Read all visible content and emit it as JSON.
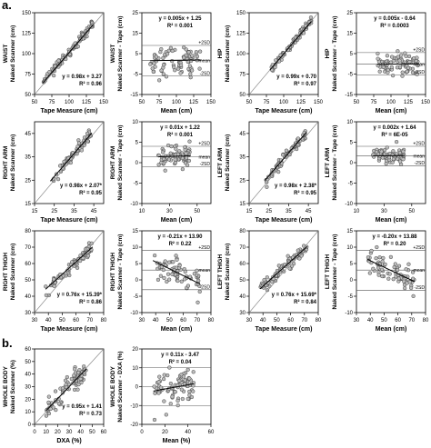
{
  "section_labels": [
    "a.",
    "b."
  ],
  "chart_data": [
    {
      "id": "waist-reg",
      "type": "scatter",
      "region_label": "WAIST",
      "xlabel": "Tape Measure (cm)",
      "ylabel": "Naked Scanner (cm)",
      "xlim": [
        50,
        150
      ],
      "ylim": [
        50,
        150
      ],
      "xticks": [
        50,
        75,
        100,
        125,
        150
      ],
      "yticks": [
        50,
        75,
        100,
        125,
        150
      ],
      "equation": "y = 0.98x + 3.27",
      "r2": "R² = 0.96",
      "identity_line": true,
      "fit": {
        "slope": 0.98,
        "intercept": 3.27
      },
      "points": {
        "x_range": [
          62,
          135
        ],
        "n": 80,
        "noise": 3
      }
    },
    {
      "id": "waist-ba",
      "type": "scatter",
      "region_label": "WAIST",
      "xlabel": "Mean (cm)",
      "ylabel": "Naked Scanner - Tape (cm)",
      "xlim": [
        50,
        150
      ],
      "ylim": [
        -15,
        25
      ],
      "xticks": [
        50,
        75,
        100,
        125,
        150
      ],
      "yticks": [
        -15,
        -5,
        5,
        15,
        25
      ],
      "equation": "y = 0.005x + 1.25",
      "r2": "R² = 0.001",
      "fit": {
        "slope": 0.005,
        "intercept": 1.25
      },
      "mean": 1.6,
      "upper": 9.0,
      "lower": -6.0,
      "ref_labels": [
        "+2SD",
        "mean",
        "-2SD"
      ],
      "points": {
        "x_range": [
          62,
          135
        ],
        "n": 80,
        "noise": 3.8
      }
    },
    {
      "id": "hip-reg",
      "type": "scatter",
      "region_label": "HIP",
      "xlabel": "Tape Measure (cm)",
      "ylabel": "Naked Scanner (cm)",
      "xlim": [
        50,
        150
      ],
      "ylim": [
        50,
        150
      ],
      "xticks": [
        50,
        75,
        100,
        125,
        150
      ],
      "yticks": [
        50,
        75,
        100,
        125,
        150
      ],
      "equation": "y = 0.99x + 0.70",
      "r2": "R² = 0.97",
      "identity_line": true,
      "fit": {
        "slope": 0.99,
        "intercept": 0.7
      },
      "points": {
        "x_range": [
          80,
          140
        ],
        "n": 80,
        "noise": 2.5
      }
    },
    {
      "id": "hip-ba",
      "type": "scatter",
      "region_label": "HIP",
      "xlabel": "Mean (cm)",
      "ylabel": "Naked Scanner - Tape (cm)",
      "xlim": [
        50,
        150
      ],
      "ylim": [
        -15,
        25
      ],
      "xticks": [
        50,
        75,
        100,
        125,
        150
      ],
      "yticks": [
        -15,
        -5,
        5,
        15,
        25
      ],
      "equation": "y = 0.005x - 0.64",
      "r2": "R² = 0.0003",
      "fit": {
        "slope": 0.005,
        "intercept": -0.64
      },
      "mean": -0.2,
      "upper": 5.5,
      "lower": -5.5,
      "ref_labels": [
        "+2SD",
        "mean",
        "-2SD"
      ],
      "points": {
        "x_range": [
          80,
          140
        ],
        "n": 80,
        "noise": 2.8
      }
    },
    {
      "id": "rarm-reg",
      "type": "scatter",
      "region_label": "RIGHT ARM",
      "xlabel": "Tape Measure (cm)",
      "ylabel": "Naked Scanner (cm)",
      "xlim": [
        15,
        50
      ],
      "ylim": [
        15,
        50
      ],
      "xticks": [
        15,
        25,
        35,
        45
      ],
      "yticks": [
        15,
        25,
        35,
        45
      ],
      "equation": "y = 0.98x + 2.07*",
      "r2": "R² = 0.95",
      "identity_line": true,
      "fit": {
        "slope": 0.98,
        "intercept": 2.07
      },
      "points": {
        "x_range": [
          23,
          44
        ],
        "n": 70,
        "noise": 1.2
      }
    },
    {
      "id": "rarm-ba",
      "type": "scatter",
      "region_label": "RIGHT ARM",
      "xlabel": "Mean (cm)",
      "ylabel": "Naked Scanner - Tape (cm)",
      "xlim": [
        10,
        60
      ],
      "ylim": [
        -10,
        10
      ],
      "xticks": [
        10,
        30,
        50
      ],
      "yticks": [
        -10,
        -5,
        0,
        5,
        10
      ],
      "equation": "y = 0.01x + 1.22",
      "r2": "R² = 0.001",
      "fit": {
        "slope": 0.01,
        "intercept": 1.22
      },
      "mean": 1.5,
      "upper": 4.0,
      "lower": -1.0,
      "ref_labels": [
        "+2SD",
        "mean",
        "-2SD"
      ],
      "points": {
        "x_range": [
          22,
          45
        ],
        "n": 70,
        "noise": 1.2
      }
    },
    {
      "id": "larm-reg",
      "type": "scatter",
      "region_label": "LEFT ARM",
      "xlabel": "Tape Measure (cm)",
      "ylabel": "Naked Scanner (cm)",
      "xlim": [
        15,
        50
      ],
      "ylim": [
        15,
        50
      ],
      "xticks": [
        15,
        25,
        35,
        45
      ],
      "yticks": [
        15,
        25,
        35,
        45
      ],
      "equation": "y = 0.98x + 2.38*",
      "r2": "R² = 0.95",
      "identity_line": true,
      "fit": {
        "slope": 0.98,
        "intercept": 2.38
      },
      "points": {
        "x_range": [
          23,
          44
        ],
        "n": 70,
        "noise": 1.2
      }
    },
    {
      "id": "larm-ba",
      "type": "scatter",
      "region_label": "LEFT ARM",
      "xlabel": "Mean (cm)",
      "ylabel": "Naked Scanner - Tape (cm)",
      "xlim": [
        10,
        60
      ],
      "ylim": [
        -10,
        10
      ],
      "xticks": [
        10,
        30,
        50
      ],
      "yticks": [
        -10,
        -5,
        0,
        5,
        10
      ],
      "equation": "y = 0.002x + 1.64",
      "r2": "R² = 6E-05",
      "fit": {
        "slope": 0.002,
        "intercept": 1.64
      },
      "mean": 1.7,
      "upper": 4.0,
      "lower": -0.8,
      "ref_labels": [
        "+2SD",
        "mean",
        "-2SD"
      ],
      "points": {
        "x_range": [
          22,
          45
        ],
        "n": 70,
        "noise": 1.0
      }
    },
    {
      "id": "rthigh-reg",
      "type": "scatter",
      "region_label": "RIGHT THIGH",
      "xlabel": "Tape Measure (cm)",
      "ylabel": "Naked Scanner (cm)",
      "xlim": [
        30,
        80
      ],
      "ylim": [
        30,
        80
      ],
      "xticks": [
        30,
        40,
        50,
        60,
        70,
        80
      ],
      "yticks": [
        30,
        40,
        50,
        60,
        70,
        80
      ],
      "equation": "y = 0.76x + 15.39*",
      "r2": "R² = 0.86",
      "identity_line": true,
      "fit": {
        "slope": 0.76,
        "intercept": 15.39
      },
      "points": {
        "x_range": [
          38,
          72
        ],
        "n": 80,
        "noise": 1.8
      }
    },
    {
      "id": "rthigh-ba",
      "type": "scatter",
      "region_label": "RIGHT THIGH",
      "xlabel": "Mean (cm)",
      "ylabel": "Naked Scanner - Tape (cm)",
      "xlim": [
        30,
        80
      ],
      "ylim": [
        -10,
        15
      ],
      "xticks": [
        30,
        40,
        50,
        60,
        70,
        80
      ],
      "yticks": [
        -10,
        -5,
        0,
        5,
        10,
        15
      ],
      "equation": "y = -0.21x + 13.90",
      "r2": "R² = 0.22",
      "fit": {
        "slope": -0.21,
        "intercept": 13.9
      },
      "mean": 3.0,
      "upper": 9.0,
      "lower": -3.0,
      "ref_labels": [
        "+2SD",
        "mean",
        "-2SD"
      ],
      "points": {
        "x_range": [
          38,
          72
        ],
        "n": 80,
        "noise": 2.2
      }
    },
    {
      "id": "lthigh-reg",
      "type": "scatter",
      "region_label": "LEFT THIGH",
      "xlabel": "Tape Measure (cm)",
      "ylabel": "Naked Scanner (cm)",
      "xlim": [
        30,
        80
      ],
      "ylim": [
        30,
        80
      ],
      "xticks": [
        30,
        40,
        50,
        60,
        70,
        80
      ],
      "yticks": [
        30,
        40,
        50,
        60,
        70,
        80
      ],
      "equation": "y = 0.76x + 15.69*",
      "r2": "R² = 0.84",
      "identity_line": true,
      "fit": {
        "slope": 0.76,
        "intercept": 15.69
      },
      "points": {
        "x_range": [
          38,
          72
        ],
        "n": 80,
        "noise": 1.9
      }
    },
    {
      "id": "lthigh-ba",
      "type": "scatter",
      "region_label": "LEFT THIGH",
      "xlabel": "Mean (cm)",
      "ylabel": "Naked Scanner - Tape (cm)",
      "xlim": [
        30,
        80
      ],
      "ylim": [
        -10,
        15
      ],
      "xticks": [
        30,
        40,
        50,
        60,
        70,
        80
      ],
      "yticks": [
        -10,
        -5,
        0,
        5,
        10,
        15
      ],
      "equation": "y = -0.20x + 13.88",
      "r2": "R² = 0.20",
      "fit": {
        "slope": -0.2,
        "intercept": 13.88
      },
      "mean": 3.0,
      "upper": 9.0,
      "lower": -3.2,
      "ref_labels": [
        "+2SD",
        "mean",
        "-2SD"
      ],
      "points": {
        "x_range": [
          38,
          72
        ],
        "n": 80,
        "noise": 2.3
      }
    },
    {
      "id": "wb-reg",
      "type": "scatter",
      "region_label": "WHOLE BODY",
      "xlabel": "DXA (%)",
      "ylabel": "Naked Scanner (%)",
      "xlim": [
        0,
        60
      ],
      "ylim": [
        0,
        60
      ],
      "xticks": [
        0,
        10,
        20,
        30,
        40,
        50,
        60
      ],
      "yticks": [
        0,
        10,
        20,
        30,
        40,
        50,
        60
      ],
      "equation": "y = 0.95x + 1.41",
      "r2": "R² = 0.73",
      "identity_line": true,
      "fit": {
        "slope": 0.95,
        "intercept": 1.41
      },
      "points": {
        "x_range": [
          10,
          45
        ],
        "n": 80,
        "noise": 4.5
      }
    },
    {
      "id": "wb-ba",
      "type": "scatter",
      "region_label": "WHOLE BODY",
      "xlabel": "Mean (%)",
      "ylabel": "Naked Scanner - DXA (%)",
      "xlim": [
        0,
        60
      ],
      "ylim": [
        -20,
        20
      ],
      "xticks": [
        0,
        20,
        40,
        60
      ],
      "yticks": [
        -20,
        -10,
        0,
        10,
        20
      ],
      "equation": "y = 0.11x - 3.47",
      "r2": "R² = 0.04",
      "fit": {
        "slope": 0.11,
        "intercept": -3.47
      },
      "mean": 0.0,
      "upper": 10.0,
      "lower": -10.0,
      "points": {
        "x_range": [
          10,
          45
        ],
        "n": 80,
        "noise": 5.0
      }
    }
  ]
}
